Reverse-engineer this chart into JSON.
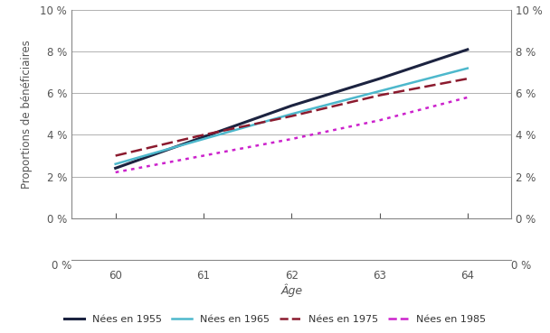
{
  "ages": [
    60,
    61,
    62,
    63,
    64
  ],
  "series_order": [
    "Nées en 1955",
    "Nées en 1965",
    "Nées en 1975",
    "Nées en 1985"
  ],
  "series": {
    "Nées en 1955": {
      "values": [
        0.024,
        0.039,
        0.054,
        0.067,
        0.081
      ],
      "color": "#1c2340",
      "linestyle": "solid",
      "linewidth": 2.2
    },
    "Nées en 1965": {
      "values": [
        0.026,
        0.038,
        0.05,
        0.061,
        0.072
      ],
      "color": "#4db8cc",
      "linestyle": "solid",
      "linewidth": 1.8
    },
    "Nées en 1975": {
      "values": [
        0.03,
        0.04,
        0.049,
        0.059,
        0.067
      ],
      "color": "#8b1a2e",
      "linestyle": "dashed",
      "linewidth": 1.8,
      "dashes": [
        5,
        2
      ]
    },
    "Nées en 1985": {
      "values": [
        0.022,
        0.03,
        0.038,
        0.047,
        0.058
      ],
      "color": "#cc22cc",
      "linestyle": "dotted",
      "linewidth": 1.8,
      "dashes": [
        1.5,
        2
      ]
    }
  },
  "xlabel": "Âge",
  "ylabel": "Proportions de bénéficiaires",
  "ylim": [
    0,
    0.1
  ],
  "yticks": [
    0,
    0.02,
    0.04,
    0.06,
    0.08,
    0.1
  ],
  "ytick_labels": [
    "0 %",
    "2 %",
    "4 %",
    "6 %",
    "8 %",
    "10 %"
  ],
  "xticks": [
    60,
    61,
    62,
    63,
    64
  ],
  "background_color": "#ffffff",
  "grid_color": "#b0b0b0",
  "tick_color": "#555555",
  "spine_color": "#888888"
}
